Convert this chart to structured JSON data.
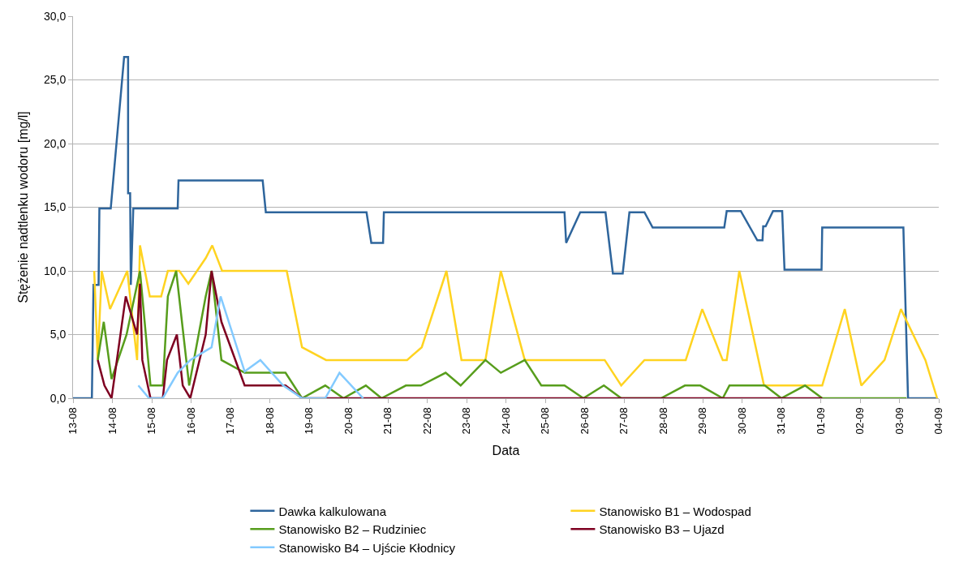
{
  "chart_data": {
    "type": "line",
    "xlabel": "Data",
    "ylabel": "Stężenie nadtlenku wodoru [mg/l]",
    "xlim": [
      "--08-13",
      "--09-04"
    ],
    "xticks": [
      {
        "value": "--08-13",
        "label": "13-08"
      },
      {
        "value": "--08-14",
        "label": "14-08"
      },
      {
        "value": "--08-15",
        "label": "15-08"
      },
      {
        "value": "--08-16",
        "label": "16-08"
      },
      {
        "value": "--08-17",
        "label": "17-08"
      },
      {
        "value": "--08-18",
        "label": "18-08"
      },
      {
        "value": "--08-19",
        "label": "19-08"
      },
      {
        "value": "--08-20",
        "label": "20-08"
      },
      {
        "value": "--08-21",
        "label": "21-08"
      },
      {
        "value": "--08-22",
        "label": "22-08"
      },
      {
        "value": "--08-23",
        "label": "23-08"
      },
      {
        "value": "--08-24",
        "label": "24-08"
      },
      {
        "value": "--08-25",
        "label": "25-08"
      },
      {
        "value": "--08-26",
        "label": "26-08"
      },
      {
        "value": "--08-27",
        "label": "27-08"
      },
      {
        "value": "--08-28",
        "label": "28-08"
      },
      {
        "value": "--08-29",
        "label": "29-08"
      },
      {
        "value": "--08-30",
        "label": "30-08"
      },
      {
        "value": "--08-31",
        "label": "31-08"
      },
      {
        "value": "--09-01",
        "label": "01-09"
      },
      {
        "value": "--09-02",
        "label": "02-09"
      },
      {
        "value": "--09-03",
        "label": "03-09"
      },
      {
        "value": "--09-04",
        "label": "04-09"
      }
    ],
    "ylim": [
      0,
      30
    ],
    "yticks": [
      {
        "value": 0,
        "label": "0,0"
      },
      {
        "value": 5,
        "label": "5,0"
      },
      {
        "value": 10,
        "label": "10,0"
      },
      {
        "value": 15,
        "label": "15,0"
      },
      {
        "value": 20,
        "label": "20,0"
      },
      {
        "value": 25,
        "label": "25,0"
      },
      {
        "value": 30,
        "label": "30,0"
      }
    ],
    "grid": "y",
    "legend": "bottom",
    "line_style": "solid",
    "series": [
      {
        "name": "Dawka kalkulowana",
        "color": "#2e659c",
        "x": [
          "--08-13T00:00",
          "--08-13T11:30",
          "--08-13T12:30",
          "--08-13T15:35",
          "--08-13T16:05",
          "--08-13T23:00",
          "--08-14T07:10",
          "--08-14T09:35",
          "--08-14T09:35",
          "--08-14T10:50",
          "--08-14T11:15",
          "--08-14T12:45",
          "--08-15T15:50",
          "--08-15T16:20",
          "--08-17T19:40",
          "--08-17T21:35",
          "--08-20T11:00",
          "--08-20T13:55",
          "--08-20T21:05",
          "--08-20T21:35",
          "--08-25T11:45",
          "--08-25T12:45",
          "--08-25T21:20",
          "--08-26T12:45",
          "--08-26T17:15",
          "--08-26T23:15",
          "--08-27T03:20",
          "--08-27T12:30",
          "--08-27T17:30",
          "--08-29T13:10",
          "--08-29T14:40",
          "--08-29T23:15",
          "--08-30T09:20",
          "--08-30T12:30",
          "--08-30T12:55",
          "--08-30T14:25",
          "--08-30T18:55",
          "--08-31T00:30",
          "--08-31T01:55",
          "--09-01T00:30",
          "--09-01T00:55",
          "--09-03T02:25",
          "--09-03T05:15",
          "--09-03T23:00"
        ],
        "values": [
          0,
          0,
          8.9,
          8.9,
          14.9,
          14.9,
          26.8,
          26.8,
          16.1,
          16.1,
          8.9,
          14.9,
          14.9,
          17.1,
          17.1,
          14.6,
          14.6,
          12.2,
          12.2,
          14.6,
          14.6,
          12.2,
          14.6,
          14.6,
          9.8,
          9.8,
          14.6,
          14.6,
          13.4,
          13.4,
          14.7,
          14.7,
          12.4,
          12.4,
          13.5,
          13.5,
          14.7,
          14.7,
          10.1,
          10.1,
          13.4,
          13.4,
          0,
          0
        ]
      },
      {
        "name": "Stanowisko B1 – Wodospad",
        "color": "#ffd320",
        "x": [
          "--08-13T12:55",
          "--08-13T15:05",
          "--08-13T17:30",
          "--08-13T22:35",
          "--08-14T09:05",
          "--08-14T15:05",
          "--08-14T16:50",
          "--08-14T22:50",
          "--08-15T05:45",
          "--08-15T09:50",
          "--08-15T16:50",
          "--08-15T22:20",
          "--08-16T08:55",
          "--08-16T12:55",
          "--08-16T18:55",
          "--08-18T10:20",
          "--08-18T19:40",
          "--08-19T10:20",
          "--08-21T11:45",
          "--08-21T20:40",
          "--08-22T11:45",
          "--08-22T20:55",
          "--08-23T11:30",
          "--08-23T20:55",
          "--08-24T11:30",
          "--08-26T12:15",
          "--08-26T22:20",
          "--08-27T12:30",
          "--08-28T13:40",
          "--08-28T23:45",
          "--08-29T12:15",
          "--08-29T14:40",
          "--08-29T22:20",
          "--08-30T13:25",
          "--09-01T00:55",
          "--09-01T14:40",
          "--09-02T00:45",
          "--09-02T14:55",
          "--09-03T00:55",
          "--09-03T15:50",
          "--09-03T23:00"
        ],
        "values": [
          10,
          3,
          10,
          7,
          10,
          3,
          12,
          8,
          8,
          10,
          10,
          9,
          11,
          12,
          10,
          10,
          4,
          3,
          3,
          4,
          10,
          3,
          3,
          10,
          3,
          3,
          1,
          3,
          3,
          7,
          3,
          3,
          10,
          1,
          1,
          7,
          1,
          3,
          7,
          3,
          0
        ]
      },
      {
        "name": "Stanowisko B2 – Rudziniec",
        "color": "#579d1c",
        "x": [
          "--08-13T15:05",
          "--08-13T18:45",
          "--08-13T23:30",
          "--08-14T08:40",
          "--08-14T16:50",
          "--08-14T23:15",
          "--08-15T06:45",
          "--08-15T09:50",
          "--08-15T14:55",
          "--08-15T22:50",
          "--08-16T08:55",
          "--08-16T12:30",
          "--08-16T18:30",
          "--08-17T08:40",
          "--08-18T09:35",
          "--08-18T19:40",
          "--08-19T09:50",
          "--08-19T20:55",
          "--08-20T10:35",
          "--08-20T20:10",
          "--08-21T11:00",
          "--08-21T20:10",
          "--08-22T11:15",
          "--08-22T20:25",
          "--08-23T11:30",
          "--08-23T20:55",
          "--08-24T11:30",
          "--08-24T21:35",
          "--08-25T11:45",
          "--08-25T23:15",
          "--08-26T11:45",
          "--08-26T22:20",
          "--08-27T22:35",
          "--08-28T13:10",
          "--08-28T22:35",
          "--08-29T12:15",
          "--08-29T16:20",
          "--08-30T13:55",
          "--08-31T00:00",
          "--08-31T14:25",
          "--09-01T00:55",
          "--09-03T04:20"
        ],
        "values": [
          3,
          6,
          1.5,
          5,
          10,
          1,
          1,
          8,
          10,
          1,
          8,
          10,
          3,
          2,
          2,
          0,
          1,
          0,
          1,
          0,
          1,
          1,
          2,
          1,
          3,
          2,
          3,
          1,
          1,
          0,
          1,
          0,
          0,
          1,
          1,
          0,
          1,
          1,
          0,
          1,
          0,
          0
        ]
      },
      {
        "name": "Stanowisko B3 – Ujazd",
        "color": "#7e0021",
        "x": [
          "--08-13T15:05",
          "--08-13T19:10",
          "--08-13T23:30",
          "--08-14T08:10",
          "--08-14T15:05",
          "--08-14T16:50",
          "--08-14T18:15",
          "--08-14T23:15",
          "--08-15T06:45",
          "--08-15T09:20",
          "--08-15T15:20",
          "--08-15T18:55",
          "--08-15T23:30",
          "--08-16T08:55",
          "--08-16T12:30",
          "--08-16T18:30",
          "--08-17T08:40",
          "--08-18T09:35",
          "--08-18T19:40",
          "--09-01T00:55"
        ],
        "values": [
          3,
          1,
          0,
          8,
          5,
          9,
          3,
          0,
          0,
          3,
          5,
          1,
          0,
          5,
          10,
          6,
          1,
          1,
          0,
          0
        ]
      },
      {
        "name": "Stanowisko B4 – Ujście Kłodnicy",
        "color": "#83caff",
        "x": [
          "--08-14T15:50",
          "--08-14T22:20",
          "--08-15T06:45",
          "--08-15T15:50",
          "--08-15T23:30",
          "--08-16T12:30",
          "--08-16T18:00",
          "--08-17T08:40",
          "--08-17T18:15",
          "--08-18T08:10",
          "--08-18T19:40",
          "--08-19T09:50",
          "--08-19T18:30",
          "--08-20T08:55"
        ],
        "values": [
          1,
          0,
          0,
          2,
          3,
          4,
          8,
          2.1,
          3,
          1,
          0,
          0,
          2,
          0
        ]
      }
    ]
  }
}
